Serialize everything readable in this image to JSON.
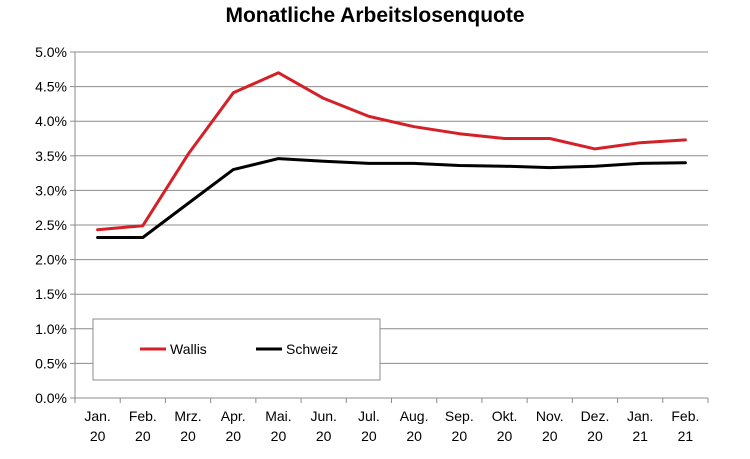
{
  "chart_data": {
    "type": "line",
    "title": "Monatliche Arbeitslosenquote",
    "xlabel": "",
    "ylabel": "",
    "categories": [
      [
        "Jan.",
        "20"
      ],
      [
        "Feb.",
        "20"
      ],
      [
        "Mrz.",
        "20"
      ],
      [
        "Apr.",
        "20"
      ],
      [
        "Mai.",
        "20"
      ],
      [
        "Jun.",
        "20"
      ],
      [
        "Jul.",
        "20"
      ],
      [
        "Aug.",
        "20"
      ],
      [
        "Sep.",
        "20"
      ],
      [
        "Okt.",
        "20"
      ],
      [
        "Nov.",
        "20"
      ],
      [
        "Dez.",
        "20"
      ],
      [
        "Jan.",
        "21"
      ],
      [
        "Feb.",
        "21"
      ]
    ],
    "ylim": [
      0,
      5.0
    ],
    "yticks": [
      {
        "value": 0.0,
        "label": "0.0%"
      },
      {
        "value": 0.5,
        "label": "0.5%"
      },
      {
        "value": 1.0,
        "label": "1.0%"
      },
      {
        "value": 1.5,
        "label": "1.5%"
      },
      {
        "value": 2.0,
        "label": "2.0%"
      },
      {
        "value": 2.5,
        "label": "2.5%"
      },
      {
        "value": 3.0,
        "label": "3.0%"
      },
      {
        "value": 3.5,
        "label": "3.5%"
      },
      {
        "value": 4.0,
        "label": "4.0%"
      },
      {
        "value": 4.5,
        "label": "4.5%"
      },
      {
        "value": 5.0,
        "label": "5.0%"
      }
    ],
    "grid": "horizontal",
    "legend_position": "bottom-left",
    "series": [
      {
        "name": "Wallis",
        "color": "#d42027",
        "values": [
          2.43,
          2.49,
          3.52,
          4.41,
          4.7,
          4.33,
          4.07,
          3.92,
          3.82,
          3.75,
          3.75,
          3.6,
          3.69,
          3.73
        ]
      },
      {
        "name": "Schweiz",
        "color": "#000000",
        "values": [
          2.32,
          2.32,
          2.81,
          3.3,
          3.46,
          3.42,
          3.39,
          3.39,
          3.36,
          3.35,
          3.33,
          3.35,
          3.39,
          3.4
        ]
      }
    ]
  }
}
